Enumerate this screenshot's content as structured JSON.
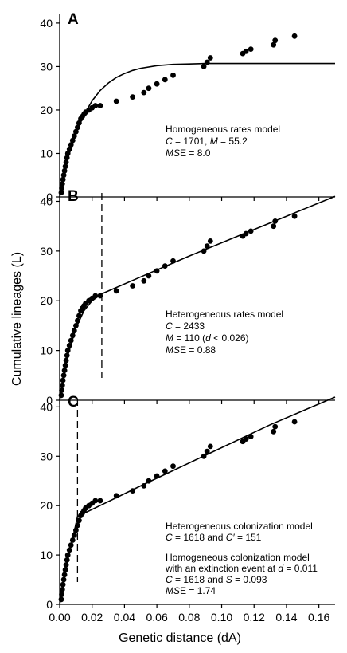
{
  "figure": {
    "ylabel": "Cumulative lineages (L)",
    "xlabel": "Genetic distance (dA)",
    "x_ticks": [
      "0.00",
      "0.02",
      "0.04",
      "0.06",
      "0.08",
      "0.10",
      "0.12",
      "0.14",
      "0.16"
    ],
    "y_ticks": [
      "0",
      "10",
      "20",
      "30",
      "40"
    ]
  },
  "chart_data": [
    {
      "type": "scatter",
      "panel": "A",
      "xlim": [
        0,
        0.17
      ],
      "ylim": [
        0,
        42
      ],
      "annotations": [
        "Homogeneous rates model",
        "C = 1701, M = 55.2",
        "MSE = 8.0"
      ],
      "points": {
        "x": [
          0.001,
          0.0013,
          0.0016,
          0.002,
          0.0025,
          0.003,
          0.0035,
          0.004,
          0.0045,
          0.005,
          0.006,
          0.007,
          0.008,
          0.009,
          0.01,
          0.011,
          0.012,
          0.013,
          0.014,
          0.015,
          0.016,
          0.018,
          0.02,
          0.022,
          0.025,
          0.035,
          0.045,
          0.052,
          0.055,
          0.06,
          0.065,
          0.07,
          0.089,
          0.091,
          0.093,
          0.113,
          0.115,
          0.118,
          0.132,
          0.133,
          0.145
        ],
        "y": [
          1,
          2,
          3,
          4,
          5,
          6,
          7,
          8,
          9,
          10,
          11,
          12,
          13,
          14,
          15,
          16,
          17,
          18,
          18.5,
          19,
          19.5,
          20,
          20.5,
          21,
          21,
          22,
          23,
          24,
          25,
          26,
          27,
          28,
          30,
          31,
          32,
          33,
          33.5,
          34,
          35,
          36,
          37
        ]
      },
      "model_curve": {
        "x": [
          0,
          0.005,
          0.01,
          0.015,
          0.02,
          0.025,
          0.03,
          0.035,
          0.04,
          0.045,
          0.05,
          0.06,
          0.07,
          0.08,
          0.09,
          0.1,
          0.12,
          0.14,
          0.17
        ],
        "y": [
          0,
          8.8,
          14.6,
          18.9,
          22.1,
          24.5,
          26.2,
          27.5,
          28.4,
          29.1,
          29.6,
          30.2,
          30.5,
          30.6,
          30.7,
          30.7,
          30.7,
          30.7,
          30.7
        ]
      }
    },
    {
      "type": "scatter",
      "panel": "B",
      "xlim": [
        0,
        0.17
      ],
      "ylim": [
        0,
        42
      ],
      "annotations": [
        "Heterogeneous rates model",
        "C = 2433",
        "M = 110 (d < 0.026)",
        "MSE = 0.88"
      ],
      "dashed_line_x": 0.026,
      "points": {
        "x": [
          0.001,
          0.0013,
          0.0016,
          0.002,
          0.0025,
          0.003,
          0.0035,
          0.004,
          0.0045,
          0.005,
          0.006,
          0.007,
          0.008,
          0.009,
          0.01,
          0.011,
          0.012,
          0.013,
          0.014,
          0.015,
          0.016,
          0.018,
          0.02,
          0.022,
          0.025,
          0.035,
          0.045,
          0.052,
          0.055,
          0.06,
          0.065,
          0.07,
          0.089,
          0.091,
          0.093,
          0.113,
          0.115,
          0.118,
          0.132,
          0.133,
          0.145
        ],
        "y": [
          1,
          2,
          3,
          4,
          5,
          6,
          7,
          8,
          9,
          10,
          11,
          12,
          13,
          14,
          15,
          16,
          17,
          18,
          18.5,
          19,
          19.5,
          20,
          20.5,
          21,
          21,
          22,
          23,
          24,
          25,
          26,
          27,
          28,
          30,
          31,
          32,
          33,
          33.5,
          34,
          35,
          36,
          37
        ]
      },
      "model_curve": {
        "x": [
          0,
          0.005,
          0.01,
          0.015,
          0.02,
          0.026,
          0.05,
          0.08,
          0.11,
          0.14,
          0.17
        ],
        "y": [
          0,
          9.0,
          14.5,
          18.0,
          20.0,
          21.4,
          24.8,
          29.0,
          33.0,
          37.0,
          41.0
        ]
      }
    },
    {
      "type": "scatter",
      "panel": "C",
      "xlim": [
        0,
        0.17
      ],
      "ylim": [
        0,
        42
      ],
      "annotations": [
        "Heterogeneous colonization model",
        "C = 1618 and C′ = 151",
        "Homogeneous colonization model",
        "with an extinction event at d = 0.011",
        "C = 1618 and S = 0.093",
        "MSE = 1.74"
      ],
      "dashed_line_x": 0.011,
      "points": {
        "x": [
          0.001,
          0.0013,
          0.0016,
          0.002,
          0.0025,
          0.003,
          0.0035,
          0.004,
          0.0045,
          0.005,
          0.006,
          0.007,
          0.008,
          0.009,
          0.01,
          0.011,
          0.012,
          0.013,
          0.014,
          0.015,
          0.016,
          0.018,
          0.02,
          0.022,
          0.025,
          0.035,
          0.045,
          0.052,
          0.055,
          0.06,
          0.065,
          0.07,
          0.089,
          0.091,
          0.093,
          0.113,
          0.115,
          0.118,
          0.132,
          0.133,
          0.145
        ],
        "y": [
          1,
          2,
          3,
          4,
          5,
          6,
          7,
          8,
          9,
          10,
          11,
          12,
          13,
          14,
          15,
          16,
          17,
          18,
          18.5,
          19,
          19.5,
          20,
          20.5,
          21,
          21,
          22,
          23,
          24,
          25,
          26,
          27,
          28,
          30,
          31,
          32,
          33,
          33.5,
          34,
          35,
          36,
          37
        ]
      },
      "model_curve": {
        "x": [
          0,
          0.003,
          0.006,
          0.009,
          0.011,
          0.05,
          0.09,
          0.13,
          0.17
        ],
        "y": [
          0,
          5.5,
          10.5,
          14.8,
          17.8,
          24.0,
          30.2,
          36.4,
          42.0
        ]
      }
    }
  ]
}
